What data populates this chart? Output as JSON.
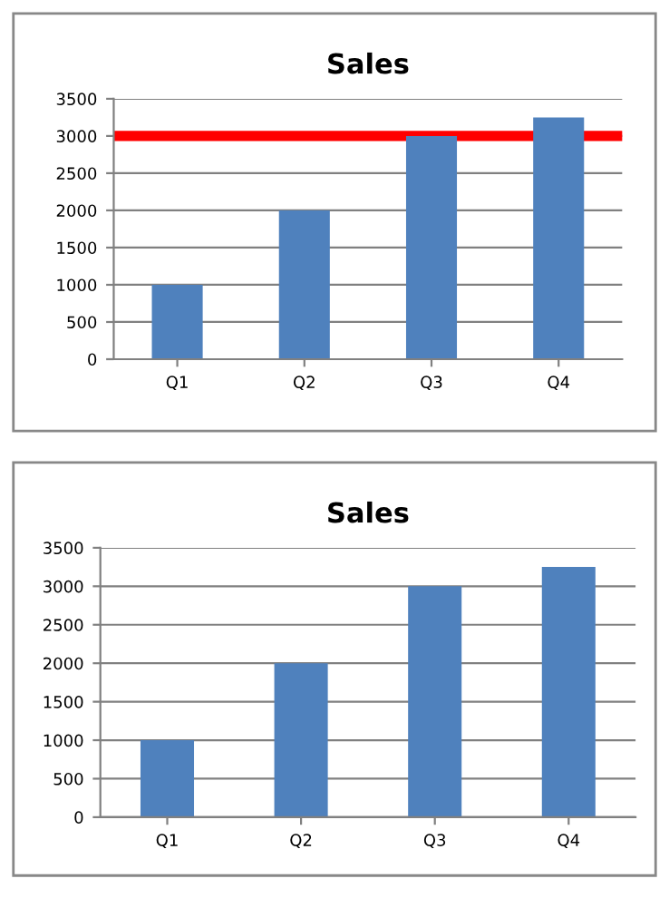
{
  "chart_data": [
    {
      "type": "bar",
      "title": "Sales",
      "categories": [
        "Q1",
        "Q2",
        "Q3",
        "Q4"
      ],
      "values": [
        1000,
        2000,
        3000,
        3250
      ],
      "color": "#4f81bd",
      "ylim": [
        0,
        3500
      ],
      "yticks": [
        0,
        500,
        1000,
        1500,
        2000,
        2500,
        3000,
        3500
      ],
      "grid": "y",
      "ref_lines": [
        {
          "axis": "y",
          "value": 3000,
          "color": "#ff0000"
        }
      ]
    },
    {
      "type": "bar",
      "title": "Sales",
      "categories": [
        "Q1",
        "Q2",
        "Q3",
        "Q4"
      ],
      "values": [
        1000,
        2000,
        3000,
        3250
      ],
      "color": "#4f81bd",
      "ylim": [
        0,
        3500
      ],
      "yticks": [
        0,
        500,
        1000,
        1500,
        2000,
        2500,
        3000,
        3500
      ],
      "grid": "y"
    }
  ]
}
